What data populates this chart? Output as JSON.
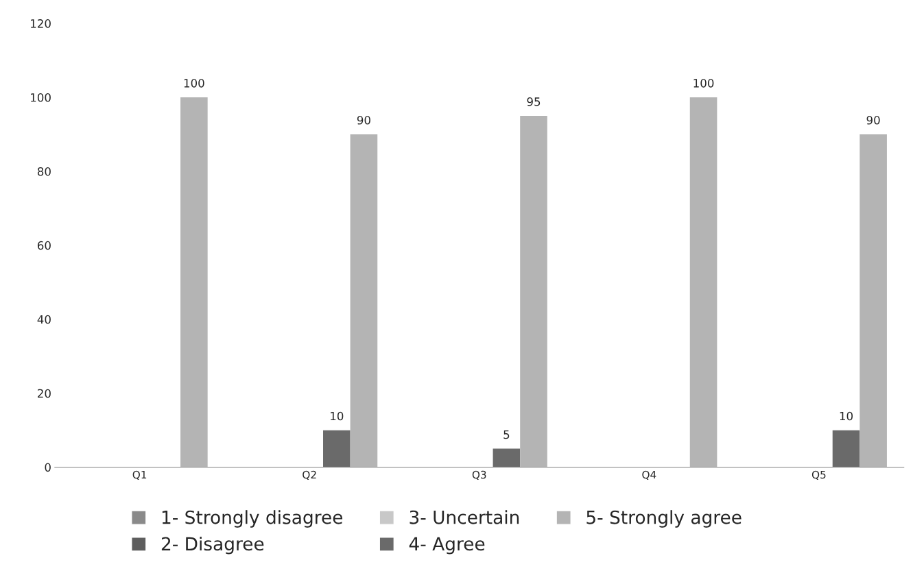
{
  "chart_data": {
    "type": "bar",
    "categories": [
      "Q1",
      "Q2",
      "Q3",
      "Q4",
      "Q5"
    ],
    "series": [
      {
        "name": "1- Strongly disagree",
        "color": "#8a8a8a",
        "values": [
          0,
          0,
          0,
          0,
          0
        ],
        "value_labels": [
          null,
          null,
          null,
          null,
          null
        ]
      },
      {
        "name": "2- Disagree",
        "color": "#5e5e5e",
        "values": [
          0,
          0,
          0,
          0,
          0
        ],
        "value_labels": [
          null,
          null,
          null,
          null,
          null
        ]
      },
      {
        "name": "3- Uncertain",
        "color": "#c8c8c8",
        "values": [
          0,
          0,
          0,
          0,
          0
        ],
        "value_labels": [
          null,
          null,
          null,
          null,
          null
        ]
      },
      {
        "name": "4- Agree",
        "color": "#6a6a6a",
        "values": [
          0,
          10,
          5,
          0,
          10
        ],
        "value_labels": [
          null,
          "10",
          "5",
          null,
          "10"
        ]
      },
      {
        "name": "5- Strongly agree",
        "color": "#b4b4b4",
        "values": [
          100,
          90,
          95,
          100,
          90
        ],
        "value_labels": [
          "100",
          "90",
          "95",
          "100",
          "90"
        ]
      }
    ],
    "ylim": [
      0,
      120
    ],
    "yticks": [
      0,
      20,
      40,
      60,
      80,
      100,
      120
    ],
    "grid": false,
    "legend": "bottom"
  }
}
